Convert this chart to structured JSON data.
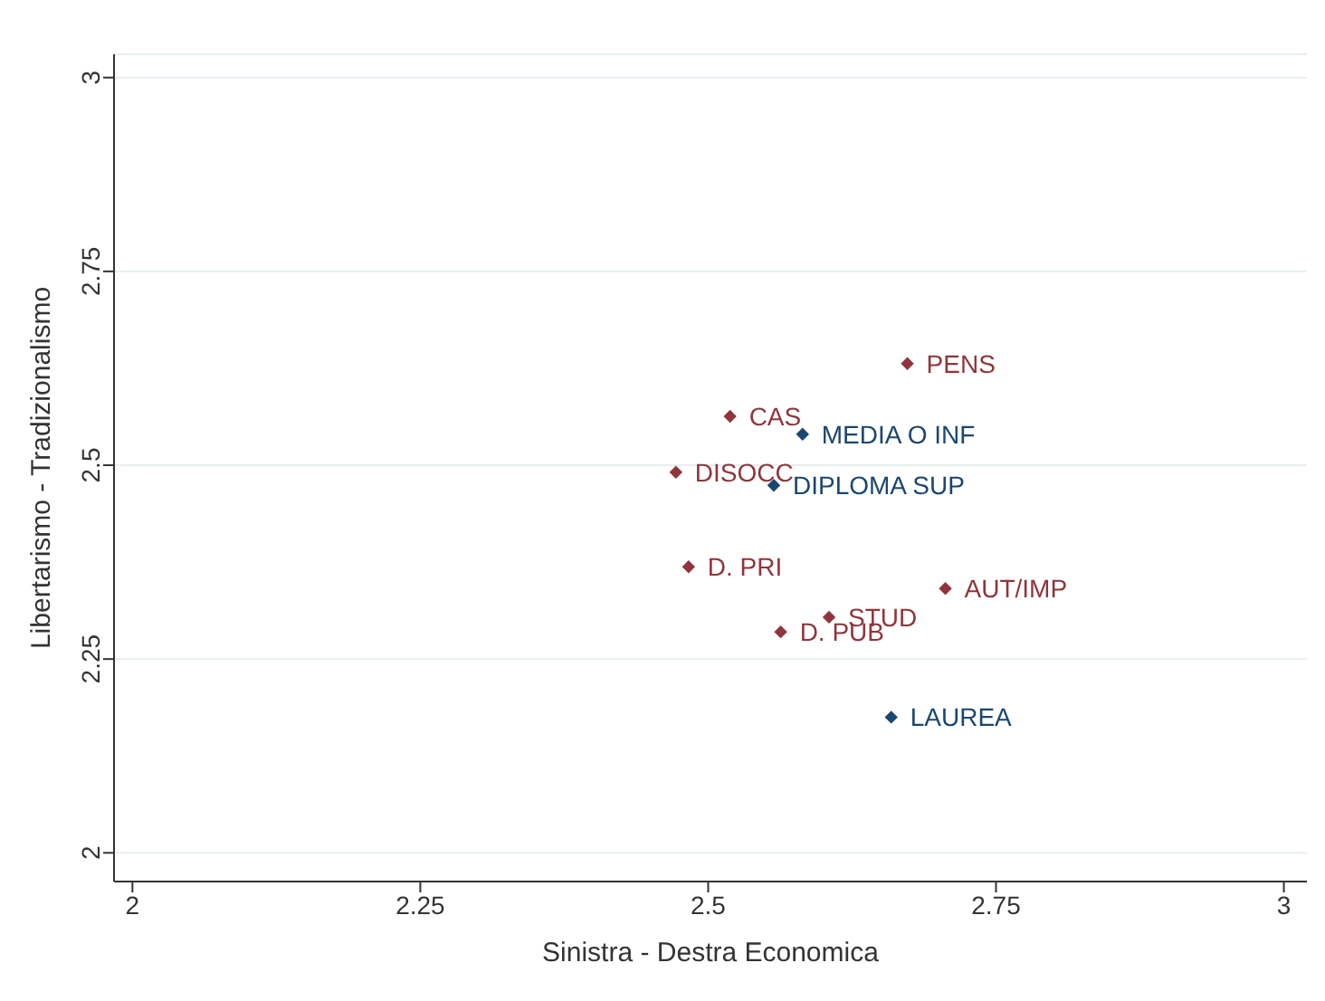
{
  "chart_data": {
    "type": "scatter",
    "xlabel": "Sinistra - Destra Economica",
    "ylabel": "Libertarismo - Tradizionalismo",
    "xlim": [
      1.984,
      3.02
    ],
    "xticks": [
      2,
      2.25,
      2.5,
      2.75,
      3
    ],
    "ylim": [
      1.963,
      3.03
    ],
    "yticks": [
      2,
      2.25,
      2.5,
      2.75,
      3
    ],
    "grid": "y",
    "legend": false,
    "marker": "diamond",
    "series": [
      {
        "color": "#90353b",
        "x": [
          2.673,
          2.519,
          2.472,
          2.483,
          2.706,
          2.605,
          2.563
        ],
        "values": [
          2.631,
          2.563,
          2.491,
          2.369,
          2.341,
          2.304,
          2.285
        ],
        "value_labels": [
          "PENS",
          "CAS",
          "DISOCC",
          "D. PRI",
          "AUT/IMP",
          "STUD",
          "D. PUB"
        ]
      },
      {
        "color": "#1a476f",
        "x": [
          2.582,
          2.557,
          2.659
        ],
        "values": [
          2.54,
          2.474,
          2.175
        ],
        "value_labels": [
          "MEDIA O INF",
          "DIPLOMA SUP",
          "LAUREA"
        ]
      }
    ]
  }
}
